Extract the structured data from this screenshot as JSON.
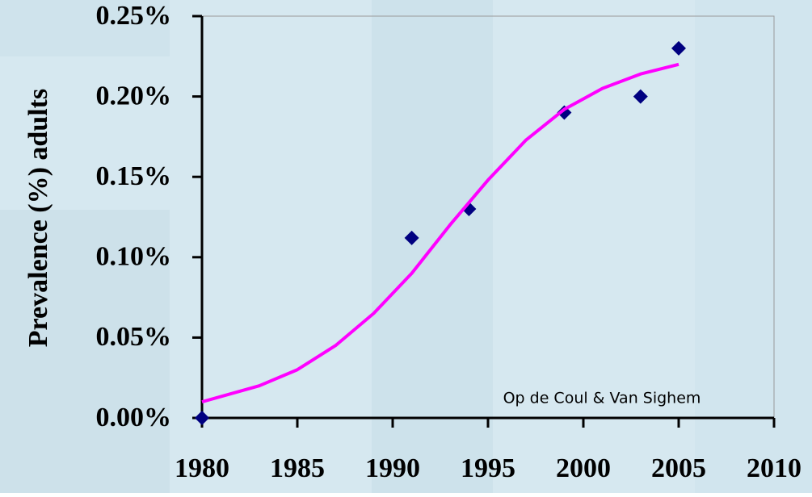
{
  "chart_data": {
    "type": "scatter",
    "ylabel": "Prevalence (%) adults",
    "annotation": "Op de Coul & Van Sighem",
    "xlim": [
      1980,
      2010
    ],
    "xticks": [
      1980,
      1985,
      1990,
      1995,
      2000,
      2005,
      2010
    ],
    "ylim": [
      0,
      0.25
    ],
    "yticks": [
      {
        "value": 0,
        "label": "0.00%"
      },
      {
        "value": 0.05,
        "label": "0.05%"
      },
      {
        "value": 0.1,
        "label": "0.10%"
      },
      {
        "value": 0.15,
        "label": "0.15%"
      },
      {
        "value": 0.2,
        "label": "0.20%"
      },
      {
        "value": 0.25,
        "label": "0.25%"
      }
    ],
    "series": [
      {
        "style": "markers",
        "color": "#000080",
        "x": [
          1980,
          1991,
          1994,
          1999,
          2003,
          2005
        ],
        "values": [
          0,
          0.112,
          0.13,
          0.19,
          0.2,
          0.23
        ]
      },
      {
        "style": "line",
        "color": "#ff00ff",
        "x": [
          1980,
          1983,
          1985,
          1987,
          1989,
          1991,
          1993,
          1995,
          1997,
          1999,
          2001,
          2003,
          2005
        ],
        "values": [
          0.01,
          0.02,
          0.03,
          0.045,
          0.065,
          0.09,
          0.12,
          0.148,
          0.173,
          0.192,
          0.205,
          0.214,
          0.22
        ]
      }
    ]
  }
}
